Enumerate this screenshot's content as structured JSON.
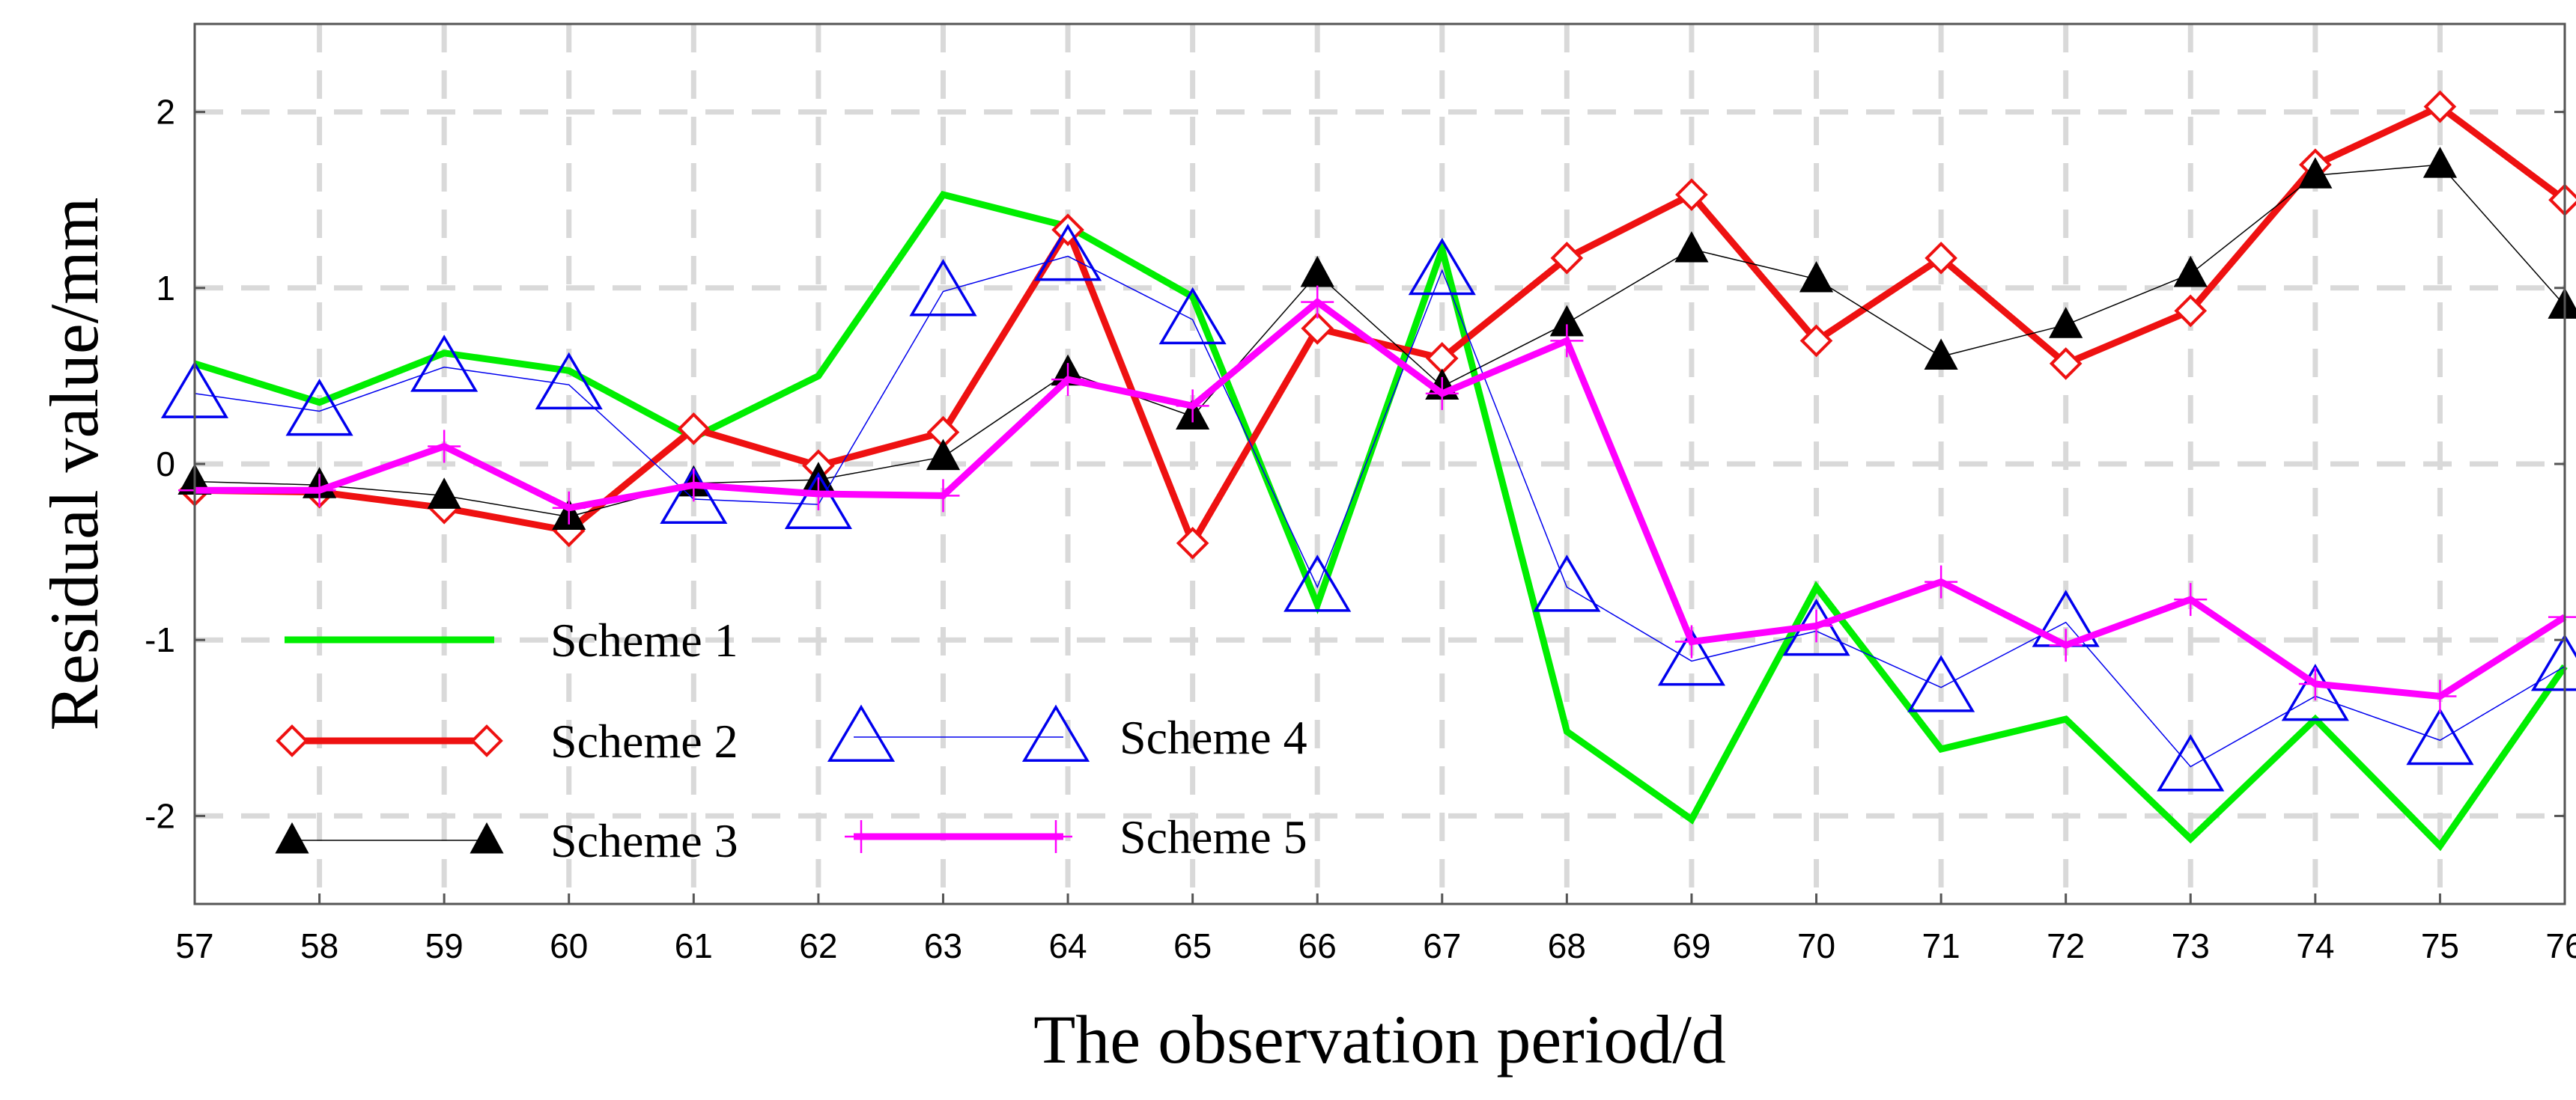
{
  "chart_data": {
    "type": "line",
    "title": "",
    "xlabel": "The observation period/d",
    "ylabel": "Residual value/mm",
    "x": [
      57,
      58,
      59,
      60,
      61,
      62,
      63,
      64,
      65,
      66,
      67,
      68,
      69,
      70,
      71,
      72,
      73,
      74,
      75,
      76
    ],
    "xlim": [
      57,
      76
    ],
    "ylim": [
      -2.5,
      2.5
    ],
    "yticks": [
      -2,
      -1,
      0,
      1,
      2
    ],
    "grid": true,
    "legend_position": "bottom-left",
    "series": [
      {
        "name": "Scheme 1",
        "color": "#00ee00",
        "marker": "none",
        "values": [
          0.57,
          0.35,
          0.63,
          0.53,
          0.15,
          0.5,
          1.53,
          1.35,
          0.95,
          -0.8,
          1.22,
          -1.52,
          -2.02,
          -0.7,
          -1.62,
          -1.45,
          -2.13,
          -1.45,
          -2.17,
          -1.15
        ]
      },
      {
        "name": "Scheme 2",
        "color": "#ee1111",
        "marker": "diamond",
        "values": [
          -0.15,
          -0.16,
          -0.25,
          -0.38,
          0.2,
          -0.01,
          0.18,
          1.33,
          -0.45,
          0.77,
          0.6,
          1.17,
          1.53,
          0.7,
          1.17,
          0.57,
          0.87,
          1.7,
          2.03,
          1.5
        ]
      },
      {
        "name": "Scheme 3",
        "color": "#000000",
        "marker": "triangle-filled",
        "values": [
          -0.1,
          -0.12,
          -0.18,
          -0.3,
          -0.11,
          -0.09,
          0.04,
          0.52,
          0.27,
          1.08,
          0.44,
          0.8,
          1.22,
          1.05,
          0.61,
          0.79,
          1.08,
          1.64,
          1.7,
          0.9
        ]
      },
      {
        "name": "Scheme 4",
        "color": "#0000ee",
        "marker": "triangle-open",
        "values": [
          0.4,
          0.3,
          0.55,
          0.45,
          -0.2,
          -0.23,
          0.98,
          1.18,
          0.82,
          -0.7,
          1.1,
          -0.7,
          -1.12,
          -0.95,
          -1.27,
          -0.9,
          -1.72,
          -1.32,
          -1.57,
          -1.15
        ]
      },
      {
        "name": "Scheme 5",
        "color": "#ff00ff",
        "marker": "plus",
        "values": [
          -0.15,
          -0.15,
          0.1,
          -0.25,
          -0.12,
          -0.17,
          -0.18,
          0.48,
          0.33,
          0.92,
          0.4,
          0.7,
          -1.01,
          -0.92,
          -0.67,
          -1.03,
          -0.77,
          -1.25,
          -1.32,
          -0.87
        ]
      }
    ]
  }
}
